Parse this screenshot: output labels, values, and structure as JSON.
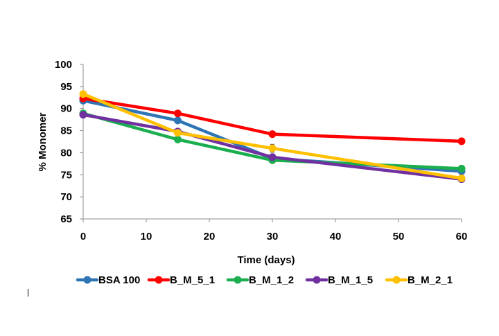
{
  "chart_data": {
    "type": "line",
    "title": "",
    "xlabel": "Time (days)",
    "ylabel": "% Monomer",
    "x": [
      0,
      15,
      30,
      60
    ],
    "xlim": [
      0,
      60
    ],
    "ylim": [
      65,
      100
    ],
    "xticks": [
      0,
      10,
      20,
      30,
      40,
      50,
      60
    ],
    "yticks": [
      65,
      70,
      75,
      80,
      85,
      90,
      95,
      100
    ],
    "grid": false,
    "legend_position": "bottom",
    "series": [
      {
        "name": "BSA 100",
        "color": "#2E75B6",
        "values": [
          91.8,
          87.3,
          78.7,
          75.8
        ],
        "errors": [
          0.4,
          0.4,
          0.6,
          0.4
        ]
      },
      {
        "name": "B_M_5_1",
        "color": "#FF0000",
        "values": [
          92.3,
          88.9,
          84.2,
          82.6
        ],
        "errors": [
          0.4,
          0.4,
          0.5,
          0.3
        ]
      },
      {
        "name": "B_M_1_2",
        "color": "#1AAE4F",
        "values": [
          88.9,
          83.0,
          78.3,
          76.4
        ],
        "errors": [
          0.4,
          0.6,
          0.6,
          0.6
        ]
      },
      {
        "name": "B_M_1_5",
        "color": "#7030A0",
        "values": [
          88.6,
          84.8,
          79.0,
          74.0
        ],
        "errors": [
          0.3,
          0.4,
          0.4,
          0.3
        ]
      },
      {
        "name": "B_M_2_1",
        "color": "#FFC000",
        "values": [
          93.3,
          84.5,
          81.0,
          74.2
        ],
        "errors": [
          0.4,
          0.4,
          0.9,
          0.3
        ]
      }
    ]
  }
}
